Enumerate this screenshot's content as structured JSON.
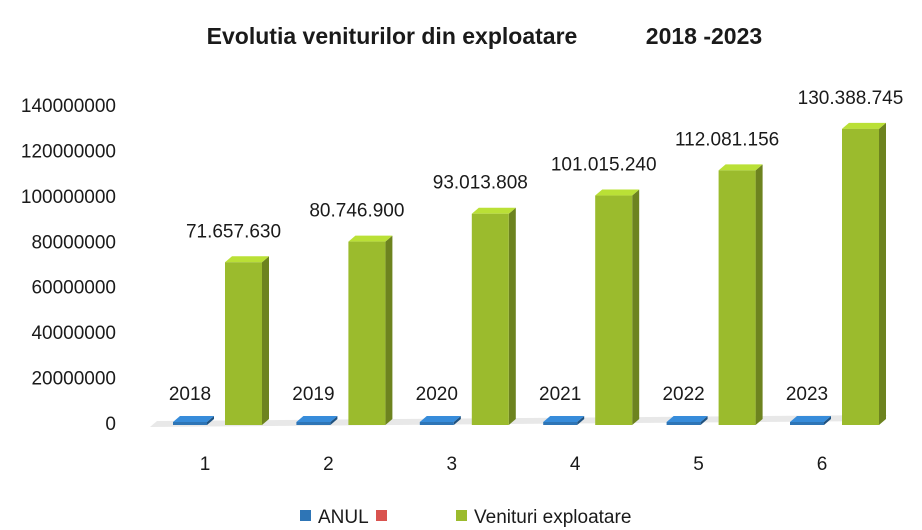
{
  "chart_data": {
    "type": "bar3d",
    "title": "Evolutia veniturilor din exploatare",
    "subtitle": "2018 -2023",
    "categories": [
      "1",
      "2",
      "3",
      "4",
      "5",
      "6"
    ],
    "series": [
      {
        "name": "ANUL",
        "color": "#2e75b6",
        "values": [
          2018,
          2019,
          2020,
          2021,
          2022,
          2023
        ]
      },
      {
        "name": "Venituri exploatare",
        "color": "#9bbb2d",
        "values": [
          71657630,
          80746900,
          93013808,
          101015240,
          112081156,
          130388745
        ],
        "value_labels": [
          "71.657.630",
          "80.746.900",
          "93.013.808",
          "101.015.240",
          "112.081.156",
          "130.388.745"
        ]
      }
    ],
    "ylim": [
      0,
      140000000
    ],
    "yticks": [
      0,
      20000000,
      40000000,
      60000000,
      80000000,
      100000000,
      120000000,
      140000000
    ],
    "legend": "bottom"
  }
}
